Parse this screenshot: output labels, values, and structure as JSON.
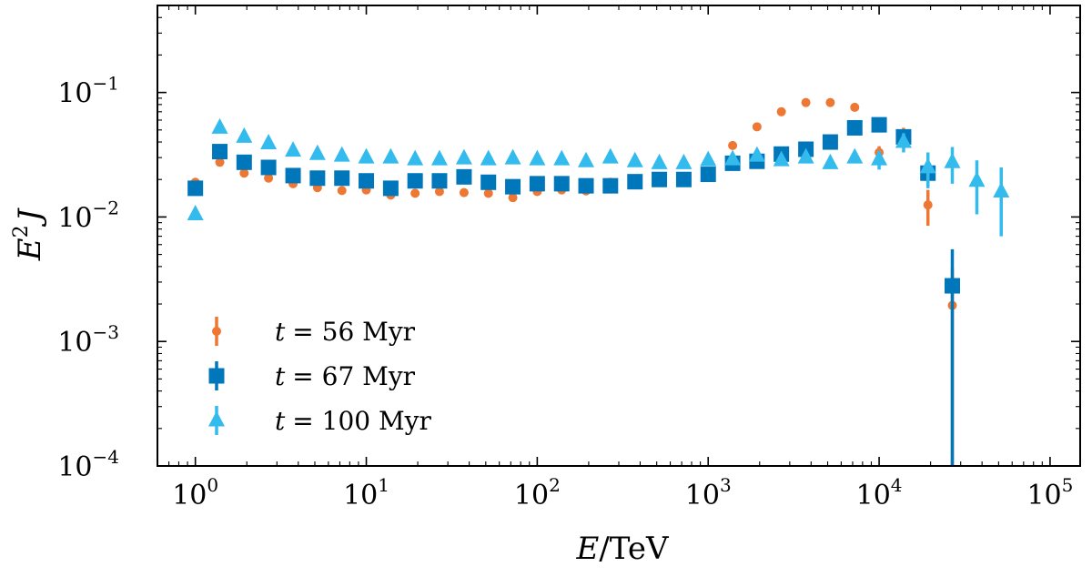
{
  "chart_data": {
    "type": "scatter",
    "title": "",
    "xlabel": "E/TeV",
    "ylabel": "E²J",
    "xscale": "log",
    "yscale": "log",
    "xlim": [
      0.6,
      150000
    ],
    "ylim": [
      0.0001,
      0.5
    ],
    "x_ticks": [
      {
        "value": 1,
        "base": "10",
        "exp": "0"
      },
      {
        "value": 10,
        "base": "10",
        "exp": "1"
      },
      {
        "value": 100,
        "base": "10",
        "exp": "2"
      },
      {
        "value": 1000,
        "base": "10",
        "exp": "3"
      },
      {
        "value": 10000,
        "base": "10",
        "exp": "4"
      },
      {
        "value": 100000,
        "base": "10",
        "exp": "5"
      }
    ],
    "y_ticks": [
      {
        "value": 0.0001,
        "base": "10",
        "exp": "−4"
      },
      {
        "value": 0.001,
        "base": "10",
        "exp": "−3"
      },
      {
        "value": 0.01,
        "base": "10",
        "exp": "−2"
      },
      {
        "value": 0.1,
        "base": "10",
        "exp": "−1"
      }
    ],
    "legend_position": "lower-left",
    "series": [
      {
        "name": "t = 56 Myr",
        "legend_t": "t",
        "legend_value": "= 56 Myr",
        "marker": "circle",
        "color": "#ee7733",
        "points": [
          {
            "x": 1.0,
            "y": 0.019
          },
          {
            "x": 1.39,
            "y": 0.0275
          },
          {
            "x": 1.93,
            "y": 0.0225
          },
          {
            "x": 2.68,
            "y": 0.0205
          },
          {
            "x": 3.73,
            "y": 0.0185
          },
          {
            "x": 5.18,
            "y": 0.0172
          },
          {
            "x": 7.2,
            "y": 0.0163
          },
          {
            "x": 10.0,
            "y": 0.0165
          },
          {
            "x": 13.9,
            "y": 0.015
          },
          {
            "x": 19.3,
            "y": 0.0155
          },
          {
            "x": 26.8,
            "y": 0.016
          },
          {
            "x": 37.3,
            "y": 0.0157
          },
          {
            "x": 51.8,
            "y": 0.0155
          },
          {
            "x": 72.0,
            "y": 0.0143
          },
          {
            "x": 100,
            "y": 0.016
          },
          {
            "x": 139,
            "y": 0.0165
          },
          {
            "x": 193,
            "y": 0.0162
          },
          {
            "x": 268,
            "y": 0.019
          },
          {
            "x": 373,
            "y": 0.0185
          },
          {
            "x": 518,
            "y": 0.02
          },
          {
            "x": 720,
            "y": 0.0205
          },
          {
            "x": 1000,
            "y": 0.023
          },
          {
            "x": 1390,
            "y": 0.0375
          },
          {
            "x": 1930,
            "y": 0.053
          },
          {
            "x": 2680,
            "y": 0.07
          },
          {
            "x": 3730,
            "y": 0.083
          },
          {
            "x": 5180,
            "y": 0.083
          },
          {
            "x": 7200,
            "y": 0.076
          },
          {
            "x": 10000,
            "y": 0.033,
            "err": 0.004
          },
          {
            "x": 13900,
            "y": 0.046,
            "err": 0.006
          },
          {
            "x": 19300,
            "y": 0.0125,
            "err": 0.004
          },
          {
            "x": 26800,
            "y": 0.00195,
            "lo": 0.0001,
            "hi": 0.0039
          }
        ]
      },
      {
        "name": "t = 67 Myr",
        "legend_t": "t",
        "legend_value": "= 67 Myr",
        "marker": "square",
        "color": "#0077bb",
        "points": [
          {
            "x": 1.0,
            "y": 0.017
          },
          {
            "x": 1.39,
            "y": 0.0335
          },
          {
            "x": 1.93,
            "y": 0.0275
          },
          {
            "x": 2.68,
            "y": 0.025
          },
          {
            "x": 3.73,
            "y": 0.0215
          },
          {
            "x": 5.18,
            "y": 0.0205
          },
          {
            "x": 7.2,
            "y": 0.0205
          },
          {
            "x": 10.0,
            "y": 0.0195
          },
          {
            "x": 13.9,
            "y": 0.017
          },
          {
            "x": 19.3,
            "y": 0.0195
          },
          {
            "x": 26.8,
            "y": 0.0195
          },
          {
            "x": 37.3,
            "y": 0.021
          },
          {
            "x": 51.8,
            "y": 0.019
          },
          {
            "x": 72.0,
            "y": 0.0175
          },
          {
            "x": 100,
            "y": 0.0185
          },
          {
            "x": 139,
            "y": 0.0185
          },
          {
            "x": 193,
            "y": 0.0178
          },
          {
            "x": 268,
            "y": 0.0178
          },
          {
            "x": 373,
            "y": 0.0192
          },
          {
            "x": 518,
            "y": 0.02
          },
          {
            "x": 720,
            "y": 0.02
          },
          {
            "x": 1000,
            "y": 0.022
          },
          {
            "x": 1390,
            "y": 0.027
          },
          {
            "x": 1930,
            "y": 0.028
          },
          {
            "x": 2680,
            "y": 0.032
          },
          {
            "x": 3730,
            "y": 0.035
          },
          {
            "x": 5180,
            "y": 0.04
          },
          {
            "x": 7200,
            "y": 0.052
          },
          {
            "x": 10000,
            "y": 0.055
          },
          {
            "x": 13900,
            "y": 0.044,
            "err": 0.005
          },
          {
            "x": 19300,
            "y": 0.0225,
            "err": 0.005
          },
          {
            "x": 26800,
            "y": 0.0028,
            "lo": 0.0001,
            "hi": 0.0055
          }
        ]
      },
      {
        "name": "t = 100 Myr",
        "legend_t": "t",
        "legend_value": "= 100 Myr",
        "marker": "triangle",
        "color": "#33bbee",
        "points": [
          {
            "x": 1.0,
            "y": 0.0105
          },
          {
            "x": 1.39,
            "y": 0.052
          },
          {
            "x": 1.93,
            "y": 0.044
          },
          {
            "x": 2.68,
            "y": 0.039
          },
          {
            "x": 3.73,
            "y": 0.034
          },
          {
            "x": 5.18,
            "y": 0.032
          },
          {
            "x": 7.2,
            "y": 0.031
          },
          {
            "x": 10.0,
            "y": 0.03
          },
          {
            "x": 13.9,
            "y": 0.03
          },
          {
            "x": 19.3,
            "y": 0.029
          },
          {
            "x": 26.8,
            "y": 0.029
          },
          {
            "x": 37.3,
            "y": 0.0295
          },
          {
            "x": 51.8,
            "y": 0.029
          },
          {
            "x": 72.0,
            "y": 0.0295
          },
          {
            "x": 100,
            "y": 0.029
          },
          {
            "x": 139,
            "y": 0.029
          },
          {
            "x": 193,
            "y": 0.028
          },
          {
            "x": 268,
            "y": 0.03
          },
          {
            "x": 373,
            "y": 0.028
          },
          {
            "x": 518,
            "y": 0.027
          },
          {
            "x": 720,
            "y": 0.027
          },
          {
            "x": 1000,
            "y": 0.0285
          },
          {
            "x": 1390,
            "y": 0.029
          },
          {
            "x": 1930,
            "y": 0.031
          },
          {
            "x": 2680,
            "y": 0.0285
          },
          {
            "x": 3730,
            "y": 0.03
          },
          {
            "x": 5180,
            "y": 0.027
          },
          {
            "x": 7200,
            "y": 0.03
          },
          {
            "x": 10000,
            "y": 0.029,
            "err": 0.005
          },
          {
            "x": 13900,
            "y": 0.04,
            "err": 0.007
          },
          {
            "x": 19300,
            "y": 0.025,
            "err": 0.008
          },
          {
            "x": 26800,
            "y": 0.0275,
            "err": 0.009
          },
          {
            "x": 37300,
            "y": 0.0195,
            "err": 0.009
          },
          {
            "x": 51800,
            "y": 0.016,
            "err": 0.009
          }
        ]
      }
    ]
  }
}
